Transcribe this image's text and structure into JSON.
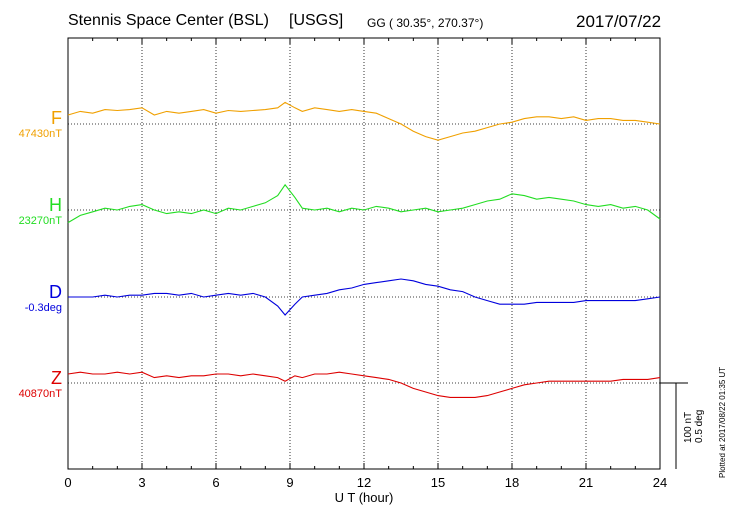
{
  "header": {
    "station": "Stennis Space Center (BSL)",
    "agency": "[USGS]",
    "coords": "GG ( 30.35°, 270.37°)",
    "date": "2017/07/22"
  },
  "footer_note": "Plotted at 2017/08/22 01:35 UT",
  "scale": {
    "nt": "100 nT",
    "deg": "0.5 deg"
  },
  "chart_data": {
    "type": "line",
    "title": "Stennis Space Center (BSL)",
    "xlabel": "U T (hour)",
    "ylabel": "",
    "xlim": [
      0,
      24
    ],
    "x_ticks": [
      "0",
      "3",
      "6",
      "9",
      "12",
      "15",
      "18",
      "21",
      "24"
    ],
    "grid": true,
    "series": [
      {
        "name": "F",
        "baseline_label": "47430nT",
        "color": "#f0a000",
        "x": [
          0,
          0.5,
          1,
          1.5,
          2,
          2.5,
          3,
          3.5,
          4,
          4.5,
          5,
          5.5,
          6,
          6.5,
          7,
          7.5,
          8,
          8.5,
          8.8,
          9.2,
          9.5,
          10,
          10.5,
          11,
          11.5,
          12,
          12.5,
          13,
          13.5,
          14,
          14.5,
          15,
          15.5,
          16,
          16.5,
          17,
          17.5,
          18,
          18.5,
          19,
          19.5,
          20,
          20.5,
          21,
          21.5,
          22,
          22.5,
          23,
          23.5,
          24
        ],
        "values": [
          10,
          14,
          12,
          16,
          15,
          16,
          18,
          10,
          14,
          12,
          14,
          16,
          12,
          15,
          14,
          15,
          16,
          18,
          24,
          18,
          14,
          18,
          16,
          14,
          16,
          14,
          12,
          6,
          0,
          -8,
          -14,
          -18,
          -14,
          -10,
          -8,
          -4,
          0,
          2,
          6,
          8,
          8,
          6,
          8,
          4,
          6,
          6,
          4,
          4,
          2,
          0
        ]
      },
      {
        "name": "H",
        "baseline_label": "23270nT",
        "color": "#22dd22",
        "x": [
          0,
          0.5,
          1,
          1.5,
          2,
          2.5,
          3,
          3.5,
          4,
          4.5,
          5,
          5.5,
          6,
          6.5,
          7,
          7.5,
          8,
          8.5,
          8.8,
          9.2,
          9.5,
          10,
          10.5,
          11,
          11.5,
          12,
          12.5,
          13,
          13.5,
          14,
          14.5,
          15,
          15.5,
          16,
          16.5,
          17,
          17.5,
          18,
          18.5,
          19,
          19.5,
          20,
          20.5,
          21,
          21.5,
          22,
          22.5,
          23,
          23.5,
          24
        ],
        "values": [
          -14,
          -6,
          -2,
          2,
          0,
          4,
          6,
          0,
          -4,
          -2,
          -4,
          0,
          -4,
          2,
          0,
          4,
          8,
          16,
          28,
          14,
          2,
          0,
          2,
          -2,
          2,
          0,
          4,
          2,
          -2,
          0,
          2,
          -2,
          0,
          2,
          6,
          10,
          12,
          18,
          16,
          12,
          14,
          12,
          10,
          6,
          4,
          6,
          2,
          4,
          0,
          -10
        ]
      },
      {
        "name": "D",
        "baseline_label": "-0.3deg",
        "color": "#0000dd",
        "x": [
          0,
          0.5,
          1,
          1.5,
          2,
          2.5,
          3,
          3.5,
          4,
          4.5,
          5,
          5.5,
          6,
          6.5,
          7,
          7.5,
          8,
          8.5,
          8.8,
          9.2,
          9.5,
          10,
          10.5,
          11,
          11.5,
          12,
          12.5,
          13,
          13.5,
          14,
          14.5,
          15,
          15.5,
          16,
          16.5,
          17,
          17.5,
          18,
          18.5,
          19,
          19.5,
          20,
          20.5,
          21,
          21.5,
          22,
          22.5,
          23,
          23.5,
          24
        ],
        "values": [
          0,
          0,
          0,
          2,
          0,
          2,
          2,
          4,
          4,
          2,
          4,
          0,
          2,
          4,
          2,
          4,
          0,
          -10,
          -20,
          -8,
          0,
          2,
          4,
          8,
          10,
          14,
          16,
          18,
          20,
          18,
          14,
          12,
          8,
          6,
          0,
          -4,
          -8,
          -8,
          -8,
          -6,
          -6,
          -6,
          -6,
          -4,
          -4,
          -4,
          -4,
          -4,
          -2,
          0
        ]
      },
      {
        "name": "Z",
        "baseline_label": "40870nT",
        "color": "#dd0000",
        "x": [
          0,
          0.5,
          1,
          1.5,
          2,
          2.5,
          3,
          3.5,
          4,
          4.5,
          5,
          5.5,
          6,
          6.5,
          7,
          7.5,
          8,
          8.5,
          8.8,
          9.2,
          9.5,
          10,
          10.5,
          11,
          11.5,
          12,
          12.5,
          13,
          13.5,
          14,
          14.5,
          15,
          15.5,
          16,
          16.5,
          17,
          17.5,
          18,
          18.5,
          19,
          19.5,
          20,
          20.5,
          21,
          21.5,
          22,
          22.5,
          23,
          23.5,
          24
        ],
        "values": [
          10,
          12,
          10,
          10,
          12,
          10,
          12,
          6,
          8,
          6,
          8,
          8,
          10,
          10,
          8,
          10,
          8,
          6,
          2,
          8,
          6,
          10,
          10,
          12,
          10,
          8,
          6,
          4,
          0,
          -6,
          -10,
          -14,
          -16,
          -16,
          -16,
          -14,
          -10,
          -6,
          -2,
          0,
          2,
          2,
          2,
          2,
          2,
          2,
          4,
          4,
          4,
          6
        ]
      }
    ]
  }
}
